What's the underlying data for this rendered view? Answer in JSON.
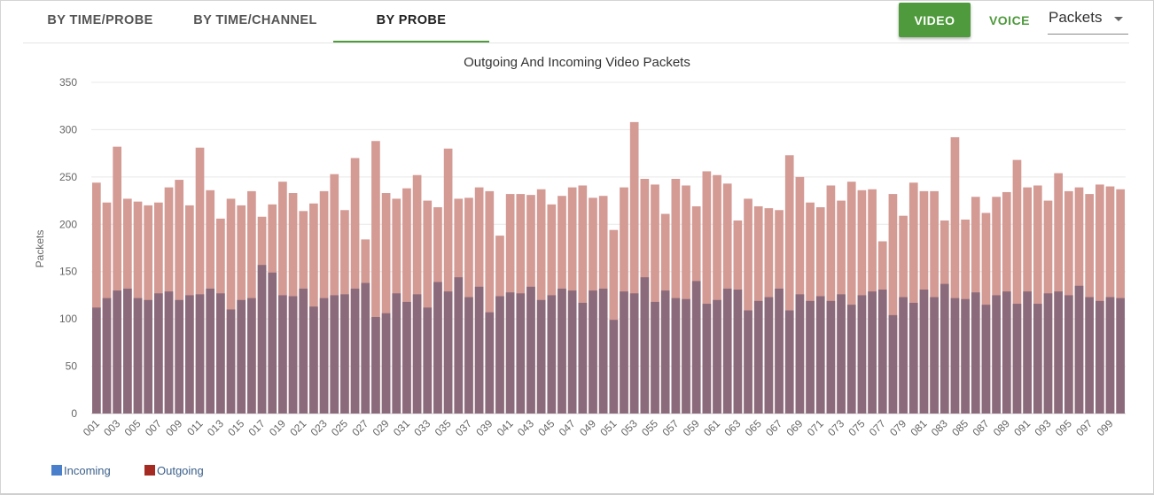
{
  "tabs": [
    {
      "label": "BY TIME/PROBE"
    },
    {
      "label": "BY TIME/CHANNEL"
    },
    {
      "label": "BY PROBE"
    }
  ],
  "toolbar": {
    "video_label": "VIDEO",
    "voice_label": "VOICE",
    "metric_value": "Packets"
  },
  "colors": {
    "accent": "#4e9a3c",
    "incoming": "#8b6b7b",
    "outgoing": "#d49a94",
    "legend_incoming": "#4a7fcb",
    "legend_outgoing": "#a52a22"
  },
  "chart_data": {
    "type": "bar",
    "title": "Outgoing And Incoming Video Packets",
    "xlabel": "",
    "ylabel": "Packets",
    "ylim": [
      0,
      350
    ],
    "yticks": [
      0,
      50,
      100,
      150,
      200,
      250,
      300,
      350
    ],
    "grid": true,
    "legend_position": "bottom-left",
    "categories": [
      "001",
      "002",
      "003",
      "004",
      "005",
      "006",
      "007",
      "008",
      "009",
      "010",
      "011",
      "012",
      "013",
      "014",
      "015",
      "016",
      "017",
      "018",
      "019",
      "020",
      "021",
      "022",
      "023",
      "024",
      "025",
      "026",
      "027",
      "028",
      "029",
      "030",
      "031",
      "032",
      "033",
      "034",
      "035",
      "036",
      "037",
      "038",
      "039",
      "040",
      "041",
      "042",
      "043",
      "044",
      "045",
      "046",
      "047",
      "048",
      "049",
      "050",
      "051",
      "052",
      "053",
      "054",
      "055",
      "056",
      "057",
      "058",
      "059",
      "060",
      "061",
      "062",
      "063",
      "064",
      "065",
      "066",
      "067",
      "068",
      "069",
      "070",
      "071",
      "072",
      "073",
      "074",
      "075",
      "076",
      "077",
      "078",
      "079",
      "080",
      "081",
      "082",
      "083",
      "084",
      "085",
      "086",
      "087",
      "088",
      "089",
      "090",
      "091",
      "092",
      "093",
      "094",
      "095",
      "096",
      "097",
      "098",
      "099",
      "100"
    ],
    "tick_labels": [
      "001",
      "003",
      "005",
      "007",
      "009",
      "011",
      "013",
      "015",
      "017",
      "019",
      "021",
      "023",
      "025",
      "027",
      "029",
      "031",
      "033",
      "035",
      "037",
      "039",
      "041",
      "043",
      "045",
      "047",
      "049",
      "051",
      "053",
      "055",
      "057",
      "059",
      "061",
      "063",
      "065",
      "067",
      "069",
      "071",
      "073",
      "075",
      "077",
      "079",
      "081",
      "083",
      "085",
      "087",
      "089",
      "091",
      "093",
      "095",
      "097",
      "099"
    ],
    "series": [
      {
        "name": "Incoming",
        "values": [
          112,
          122,
          130,
          132,
          122,
          120,
          127,
          129,
          120,
          125,
          126,
          132,
          127,
          110,
          120,
          122,
          157,
          149,
          125,
          124,
          132,
          113,
          122,
          125,
          126,
          132,
          138,
          102,
          106,
          127,
          118,
          126,
          112,
          139,
          129,
          144,
          123,
          134,
          107,
          124,
          128,
          127,
          134,
          120,
          125,
          132,
          130,
          117,
          130,
          132,
          99,
          129,
          127,
          144,
          118,
          130,
          122,
          121,
          140,
          116,
          120,
          132,
          131,
          109,
          119,
          123,
          132,
          109,
          126,
          119,
          124,
          119,
          126,
          115,
          125,
          129,
          131,
          104,
          123,
          117,
          131,
          123,
          137,
          122,
          121,
          128,
          115,
          125,
          129,
          116,
          129,
          116,
          127,
          129,
          125,
          135,
          123,
          119,
          123,
          122
        ]
      },
      {
        "name": "Outgoing",
        "values": [
          244,
          223,
          282,
          227,
          224,
          220,
          223,
          239,
          247,
          220,
          281,
          236,
          206,
          227,
          220,
          235,
          208,
          221,
          245,
          233,
          214,
          222,
          235,
          253,
          215,
          270,
          184,
          288,
          233,
          227,
          238,
          252,
          225,
          218,
          280,
          227,
          228,
          239,
          235,
          188,
          232,
          232,
          231,
          237,
          221,
          230,
          239,
          241,
          228,
          230,
          194,
          239,
          308,
          248,
          242,
          211,
          248,
          241,
          219,
          256,
          252,
          243,
          204,
          227,
          219,
          217,
          215,
          273,
          250,
          223,
          218,
          241,
          225,
          245,
          236,
          237,
          182,
          232,
          209,
          244,
          235,
          235,
          204,
          292,
          205,
          229,
          212,
          229,
          234,
          268,
          239,
          241,
          225,
          254,
          235,
          239,
          232,
          242,
          240,
          237
        ]
      }
    ]
  },
  "legend": {
    "incoming_label": "Incoming",
    "outgoing_label": "Outgoing"
  }
}
